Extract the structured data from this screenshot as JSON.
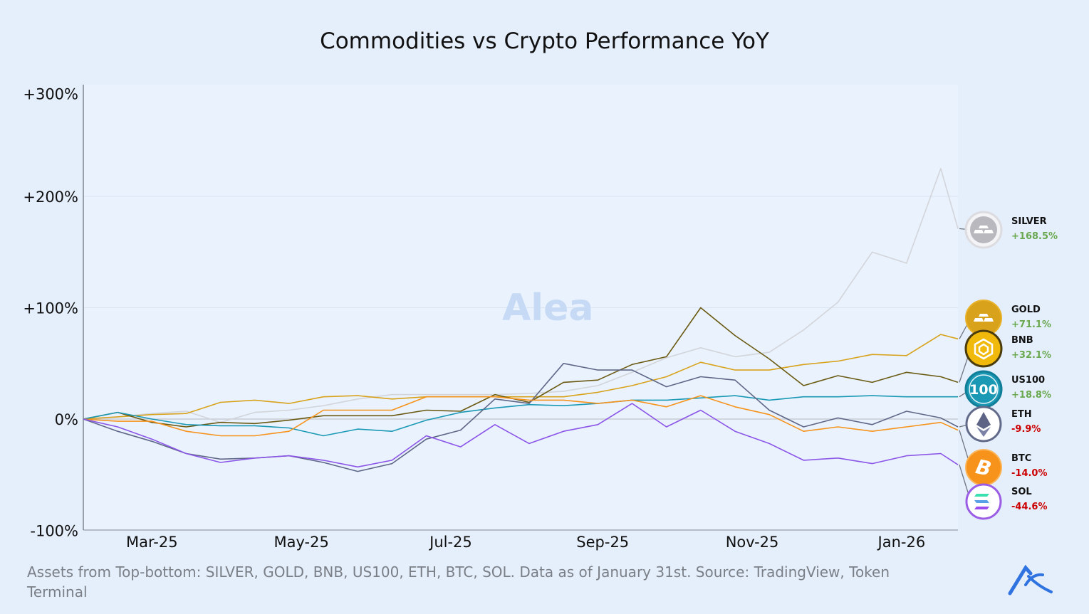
{
  "chart_data": {
    "type": "line",
    "title": "Commodities vs Crypto Performance YoY",
    "xlabel": "",
    "ylabel": "",
    "x": [
      "2025-02-01",
      "2025-02-15",
      "2025-03-01",
      "2025-03-15",
      "2025-03-29",
      "2025-04-12",
      "2025-04-26",
      "2025-05-10",
      "2025-05-24",
      "2025-06-07",
      "2025-06-21",
      "2025-07-05",
      "2025-07-19",
      "2025-08-02",
      "2025-08-16",
      "2025-08-30",
      "2025-09-13",
      "2025-09-27",
      "2025-10-11",
      "2025-10-25",
      "2025-11-08",
      "2025-11-22",
      "2025-12-06",
      "2025-12-20",
      "2026-01-03",
      "2026-01-17",
      "2026-01-24"
    ],
    "xlim": [
      "2025-02-01",
      "2026-01-24"
    ],
    "xticks": [
      {
        "date": "2025-03-01",
        "label": "Mar-25"
      },
      {
        "date": "2025-05-01",
        "label": "May-25"
      },
      {
        "date": "2025-07-01",
        "label": "Jul-25"
      },
      {
        "date": "2025-09-01",
        "label": "Sep-25"
      },
      {
        "date": "2025-11-01",
        "label": "Nov-25"
      },
      {
        "date": "2026-01-01",
        "label": "Jan-26"
      }
    ],
    "ylim": [
      -100,
      300
    ],
    "yticks": [
      {
        "value": 300,
        "label": "+300%"
      },
      {
        "value": 200,
        "label": "+200%"
      },
      {
        "value": 100,
        "label": "+100%"
      },
      {
        "value": 0,
        "label": "0%"
      },
      {
        "value": -100,
        "label": "-100%"
      }
    ],
    "grid": true,
    "series": [
      {
        "name": "SILVER",
        "change": "+168.5%",
        "color": "#d3d5da",
        "values": [
          0,
          2,
          5,
          7,
          -3,
          6,
          8,
          12,
          18,
          22,
          22,
          22,
          22,
          23,
          25,
          30,
          42,
          55,
          64,
          56,
          60,
          80,
          105,
          150,
          140,
          225,
          171
        ]
      },
      {
        "name": "GOLD",
        "change": "+71.1%",
        "color": "#d9a21b",
        "values": [
          0,
          2,
          4,
          5,
          15,
          17,
          14,
          20,
          21,
          18,
          20,
          20,
          20,
          20,
          20,
          24,
          30,
          38,
          51,
          44,
          44,
          49,
          52,
          58,
          57,
          76,
          72
        ]
      },
      {
        "name": "BNB",
        "change": "+32.1%",
        "color": "#6b5a12",
        "values": [
          0,
          6,
          -3,
          -7,
          -3,
          -4,
          -1,
          3,
          3,
          3,
          8,
          7,
          22,
          15,
          33,
          35,
          49,
          56,
          100,
          75,
          54,
          30,
          39,
          33,
          42,
          38,
          33
        ]
      },
      {
        "name": "US100",
        "change": "+18.8%",
        "color": "#1a98b4",
        "values": [
          0,
          6,
          0,
          -5,
          -6,
          -6,
          -8,
          -15,
          -9,
          -11,
          -1,
          6,
          10,
          13,
          12,
          14,
          17,
          17,
          19,
          21,
          17,
          20,
          20,
          21,
          20,
          20,
          20
        ]
      },
      {
        "name": "ETH",
        "change": "-9.9%",
        "color": "#5f6788",
        "values": [
          0,
          -11,
          -20,
          -31,
          -36,
          -35,
          -33,
          -39,
          -47,
          -40,
          -18,
          -10,
          18,
          14,
          50,
          44,
          44,
          29,
          38,
          35,
          8,
          -7,
          1,
          -5,
          7,
          1,
          -7
        ]
      },
      {
        "name": "BTC",
        "change": "-14.0%",
        "color": "#f7931a",
        "values": [
          0,
          -2,
          -2,
          -11,
          -15,
          -15,
          -11,
          8,
          8,
          8,
          20,
          20,
          20,
          17,
          17,
          14,
          17,
          11,
          21,
          11,
          4,
          -11,
          -7,
          -11,
          -7,
          -3,
          -10
        ]
      },
      {
        "name": "SOL",
        "change": "-44.6%",
        "color": "#8b55e8",
        "values": [
          0,
          -7,
          -18,
          -31,
          -39,
          -35,
          -33,
          -37,
          -43,
          -37,
          -15,
          -25,
          -5,
          -22,
          -11,
          -5,
          14,
          -7,
          8,
          -11,
          -22,
          -37,
          -35,
          -40,
          -33,
          -31,
          -41
        ]
      }
    ],
    "icons": [
      "silver-bars-icon",
      "gold-bars-icon",
      "bnb-icon",
      "us100-icon",
      "ethereum-icon",
      "bitcoin-icon",
      "solana-icon"
    ],
    "positive_color": "#6aa84f",
    "negative_color": "#cc0000"
  },
  "watermark": "Alea",
  "footnote": "Assets from Top-bottom: SILVER, GOLD, BNB, US100, ETH, BTC, SOL. Data as of January 31st. Source: TradingView, Token Terminal",
  "logo_text": "Alea"
}
